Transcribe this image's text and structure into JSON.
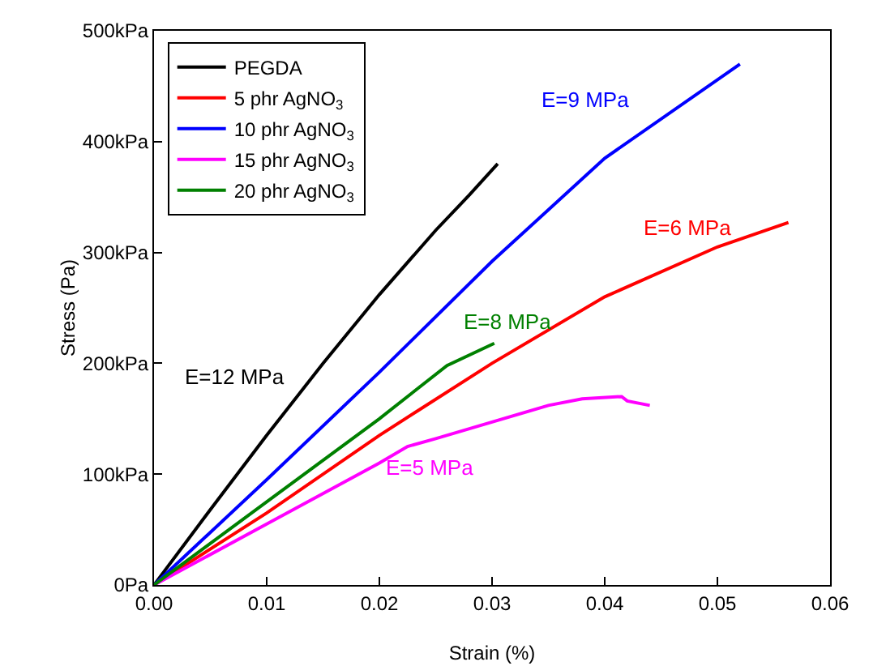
{
  "chart_data": {
    "type": "line",
    "xlabel": "Strain (%)",
    "ylabel": "Stress (Pa)",
    "xlim": [
      0,
      0.06
    ],
    "xticks": [
      {
        "value": 0,
        "label": "0.00"
      },
      {
        "value": 0.01,
        "label": "0.01"
      },
      {
        "value": 0.02,
        "label": "0.02"
      },
      {
        "value": 0.03,
        "label": "0.03"
      },
      {
        "value": 0.04,
        "label": "0.04"
      },
      {
        "value": 0.05,
        "label": "0.05"
      },
      {
        "value": 0.06,
        "label": "0.06"
      }
    ],
    "ylim": [
      0,
      500
    ],
    "yticks": [
      {
        "value": 0,
        "label": "0Pa"
      },
      {
        "value": 100,
        "label": "100kPa"
      },
      {
        "value": 200,
        "label": "200kPa"
      },
      {
        "value": 300,
        "label": "300kPa"
      },
      {
        "value": 400,
        "label": "400kPa"
      },
      {
        "value": 500,
        "label": "500kPa"
      }
    ],
    "grid": false,
    "legend": "top left",
    "marker": "none",
    "line_style": "solid",
    "series": [
      {
        "name": "PEGDA",
        "color": "#000000",
        "x": [
          0,
          0.005,
          0.01,
          0.015,
          0.02,
          0.025,
          0.028,
          0.0305
        ],
        "values": [
          0,
          68,
          135,
          200,
          262,
          320,
          352,
          380
        ]
      },
      {
        "name": "5 phr AgNO$_{3}$",
        "color": "#ff0000",
        "x": [
          0,
          0.01,
          0.02,
          0.03,
          0.04,
          0.05,
          0.0563
        ],
        "values": [
          0,
          65,
          135,
          200,
          260,
          305,
          327
        ]
      },
      {
        "name": "10 phr AgNO$_{3}$",
        "color": "#0000ff",
        "x": [
          0,
          0.01,
          0.02,
          0.03,
          0.04,
          0.052
        ],
        "values": [
          0,
          95,
          192,
          292,
          385,
          470
        ]
      },
      {
        "name": "15 phr AgNO$_{3}$",
        "color": "#ff00ff",
        "x": [
          0,
          0.01,
          0.02,
          0.0225,
          0.025,
          0.03,
          0.035,
          0.038,
          0.0415,
          0.042,
          0.044
        ],
        "values": [
          0,
          55,
          110,
          125,
          132,
          147,
          162,
          168,
          170,
          166,
          162
        ]
      },
      {
        "name": "20 phr AgNO$_{3}$",
        "color": "#008000",
        "x": [
          0,
          0.01,
          0.02,
          0.026,
          0.0302
        ],
        "values": [
          0,
          75,
          150,
          198,
          218
        ]
      }
    ],
    "annotations": [
      "E=12 MPa",
      "E=9 MPa",
      "E=6 MPa",
      "E=8 MPa",
      "E=5 MPa"
    ]
  }
}
